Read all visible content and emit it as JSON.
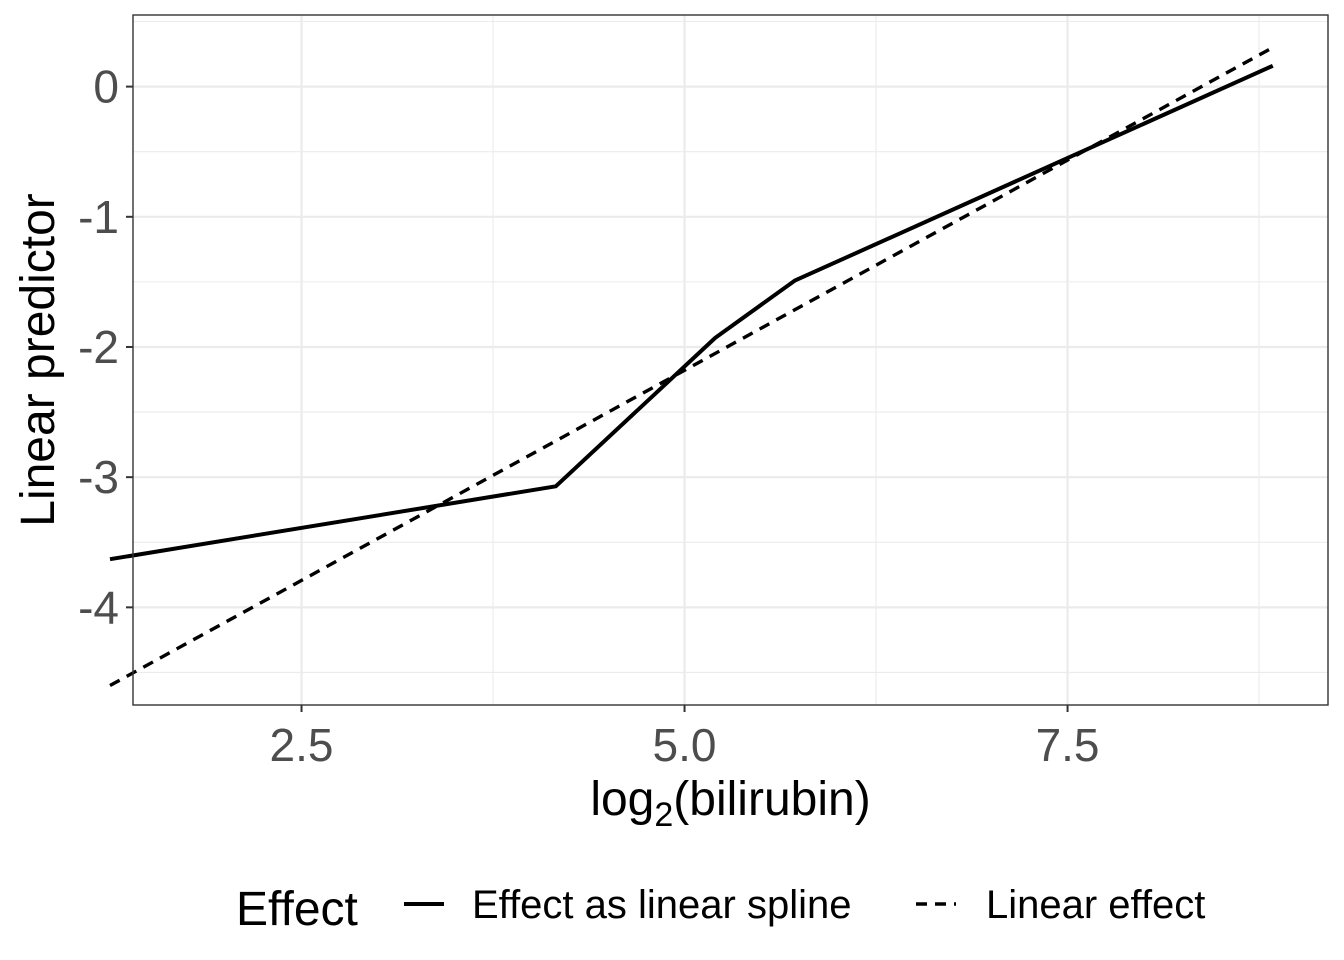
{
  "chart_data": {
    "type": "line",
    "xlabel": {
      "base": "log",
      "subscript": "2",
      "rest": "(bilirubin)"
    },
    "ylabel": "Linear predictor",
    "xlim": [
      1.4,
      9.2
    ],
    "ylim": [
      -4.75,
      0.55
    ],
    "x_ticks": [
      {
        "value": 2.5,
        "label": "2.5"
      },
      {
        "value": 5.0,
        "label": "5.0"
      },
      {
        "value": 7.5,
        "label": "7.5"
      }
    ],
    "y_ticks": [
      {
        "value": 0,
        "label": "0"
      },
      {
        "value": -1,
        "label": "-1"
      },
      {
        "value": -2,
        "label": "-2"
      },
      {
        "value": -3,
        "label": "-3"
      },
      {
        "value": -4,
        "label": "-4"
      }
    ],
    "grid": true,
    "legend": {
      "position": "bottom",
      "title": "Effect",
      "entries": [
        {
          "label": "Effect as linear spline",
          "line_style": "solid"
        },
        {
          "label": "Linear effect",
          "line_style": "dashed"
        }
      ]
    },
    "series": [
      {
        "name": "Effect as linear spline",
        "line_style": "solid",
        "color": "#000000",
        "points": [
          {
            "x": 1.25,
            "y": -3.63
          },
          {
            "x": 4.16,
            "y": -3.07
          },
          {
            "x": 5.2,
            "y": -1.93
          },
          {
            "x": 5.72,
            "y": -1.49
          },
          {
            "x": 8.84,
            "y": 0.16
          }
        ]
      },
      {
        "name": "Linear effect",
        "line_style": "dashed",
        "color": "#000000",
        "points": [
          {
            "x": 1.25,
            "y": -4.6
          },
          {
            "x": 8.84,
            "y": 0.3
          }
        ]
      }
    ]
  },
  "colors": {
    "grid": "#ebebeb",
    "panel_border": "#333333",
    "tick_text": "#4d4d4d",
    "line": "#000000"
  }
}
